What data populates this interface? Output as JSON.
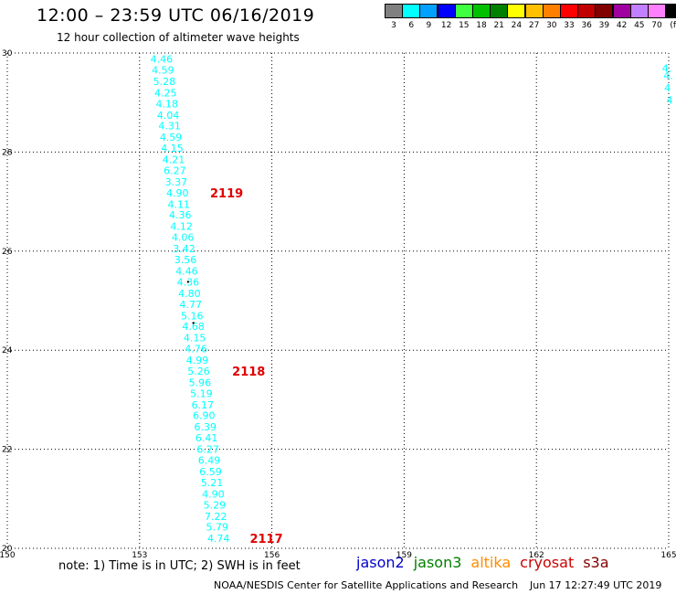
{
  "header": {
    "title": "12:00 – 23:59 UTC 06/16/2019",
    "subtitle": "12 hour collection of altimeter wave heights"
  },
  "legend": {
    "unit": "(ft)",
    "bins": [
      {
        "label": "3",
        "color": "#808080"
      },
      {
        "label": "6",
        "color": "#00ffff"
      },
      {
        "label": "9",
        "color": "#00a0ff"
      },
      {
        "label": "12",
        "color": "#0000ff"
      },
      {
        "label": "15",
        "color": "#40ff40"
      },
      {
        "label": "18",
        "color": "#00c000"
      },
      {
        "label": "21",
        "color": "#008000"
      },
      {
        "label": "24",
        "color": "#ffff00"
      },
      {
        "label": "27",
        "color": "#ffc000"
      },
      {
        "label": "30",
        "color": "#ff8000"
      },
      {
        "label": "33",
        "color": "#ff0000"
      },
      {
        "label": "36",
        "color": "#c00000"
      },
      {
        "label": "39",
        "color": "#800000"
      },
      {
        "label": "42",
        "color": "#a000a0"
      },
      {
        "label": "45",
        "color": "#c080ff"
      },
      {
        "label": "70",
        "color": "#ff80ff"
      },
      {
        "label": "",
        "color": "#000000"
      }
    ]
  },
  "map": {
    "lon_ticks": [
      "150",
      "153",
      "156",
      "159",
      "162",
      "165"
    ],
    "lat_ticks": [
      "20",
      "22",
      "24",
      "26",
      "28",
      "30"
    ],
    "lon_range": [
      150,
      165
    ],
    "lat_range": [
      20,
      30
    ],
    "grid": "dotted",
    "track_color": "#00ffff",
    "time_label_color": "#e00000",
    "track_points": [
      {
        "lat": 29.88,
        "lon": 153.5,
        "value": "4.46"
      },
      {
        "lat": 29.66,
        "lon": 153.53,
        "value": "4.59"
      },
      {
        "lat": 29.43,
        "lon": 153.56,
        "value": "5.28"
      },
      {
        "lat": 29.2,
        "lon": 153.59,
        "value": "4.25"
      },
      {
        "lat": 28.98,
        "lon": 153.62,
        "value": "4.18"
      },
      {
        "lat": 28.75,
        "lon": 153.65,
        "value": "4.04"
      },
      {
        "lat": 28.53,
        "lon": 153.68,
        "value": "4.31"
      },
      {
        "lat": 28.3,
        "lon": 153.71,
        "value": "4.59"
      },
      {
        "lat": 28.08,
        "lon": 153.74,
        "value": "4.15"
      },
      {
        "lat": 27.85,
        "lon": 153.77,
        "value": "4.21"
      },
      {
        "lat": 27.63,
        "lon": 153.8,
        "value": "6.27"
      },
      {
        "lat": 27.4,
        "lon": 153.83,
        "value": "3.37"
      },
      {
        "lat": 27.18,
        "lon": 153.86,
        "value": "4.90"
      },
      {
        "lat": 26.95,
        "lon": 153.89,
        "value": "4.11"
      },
      {
        "lat": 26.73,
        "lon": 153.92,
        "value": "4.36"
      },
      {
        "lat": 26.5,
        "lon": 153.95,
        "value": "4.12"
      },
      {
        "lat": 26.28,
        "lon": 153.98,
        "value": "4.06"
      },
      {
        "lat": 26.05,
        "lon": 154.01,
        "value": "3.42"
      },
      {
        "lat": 25.83,
        "lon": 154.04,
        "value": "3.56"
      },
      {
        "lat": 25.6,
        "lon": 154.07,
        "value": "4.46"
      },
      {
        "lat": 25.38,
        "lon": 154.1,
        "value": "4.36"
      },
      {
        "lat": 25.15,
        "lon": 154.13,
        "value": "4.80"
      },
      {
        "lat": 24.93,
        "lon": 154.16,
        "value": "4.77"
      },
      {
        "lat": 24.7,
        "lon": 154.19,
        "value": "5.16"
      },
      {
        "lat": 24.48,
        "lon": 154.22,
        "value": "4.68"
      },
      {
        "lat": 24.25,
        "lon": 154.25,
        "value": "4.15"
      },
      {
        "lat": 24.03,
        "lon": 154.28,
        "value": "4.76"
      },
      {
        "lat": 23.8,
        "lon": 154.31,
        "value": "4.99"
      },
      {
        "lat": 23.58,
        "lon": 154.34,
        "value": "5.26"
      },
      {
        "lat": 23.35,
        "lon": 154.37,
        "value": "5.96"
      },
      {
        "lat": 23.13,
        "lon": 154.4,
        "value": "5.19"
      },
      {
        "lat": 22.9,
        "lon": 154.43,
        "value": "6.17"
      },
      {
        "lat": 22.68,
        "lon": 154.46,
        "value": "6.90"
      },
      {
        "lat": 22.45,
        "lon": 154.49,
        "value": "6.39"
      },
      {
        "lat": 22.23,
        "lon": 154.52,
        "value": "6.41"
      },
      {
        "lat": 22.0,
        "lon": 154.55,
        "value": "6.27"
      },
      {
        "lat": 21.78,
        "lon": 154.58,
        "value": "6.49"
      },
      {
        "lat": 21.55,
        "lon": 154.61,
        "value": "6.59"
      },
      {
        "lat": 21.33,
        "lon": 154.64,
        "value": "5.21"
      },
      {
        "lat": 21.1,
        "lon": 154.67,
        "value": "4.90"
      },
      {
        "lat": 20.88,
        "lon": 154.7,
        "value": "5.29"
      },
      {
        "lat": 20.65,
        "lon": 154.73,
        "value": "7.22"
      },
      {
        "lat": 20.43,
        "lon": 154.76,
        "value": "5.79"
      },
      {
        "lat": 20.2,
        "lon": 154.79,
        "value": "4.74"
      }
    ],
    "time_labels": [
      {
        "lat": 27.18,
        "lon": 154.6,
        "text": "2119"
      },
      {
        "lat": 23.58,
        "lon": 155.1,
        "text": "2118"
      },
      {
        "lat": 20.2,
        "lon": 155.5,
        "text": "2117"
      }
    ],
    "partial_labels": [
      {
        "lat": 29.7,
        "lon": 164.85,
        "text": "4."
      },
      {
        "lat": 29.55,
        "lon": 164.88,
        "text": "4."
      },
      {
        "lat": 29.3,
        "lon": 164.9,
        "text": "4"
      },
      {
        "lat": 29.05,
        "lon": 164.95,
        "text": "4"
      }
    ]
  },
  "footer": {
    "note": "note: 1) Time is in UTC; 2) SWH is in feet",
    "satellites": [
      {
        "name": "jason2",
        "color": "#0000cc"
      },
      {
        "name": "jason3",
        "color": "#008000"
      },
      {
        "name": "altika",
        "color": "#ff8c00"
      },
      {
        "name": "cryosat",
        "color": "#cc0000"
      },
      {
        "name": "s3a",
        "color": "#800000"
      }
    ],
    "credit": "NOAA/NESDIS Center for Satellite Applications and Research",
    "timestamp": "Jun 17 12:27:49 UTC 2019"
  }
}
